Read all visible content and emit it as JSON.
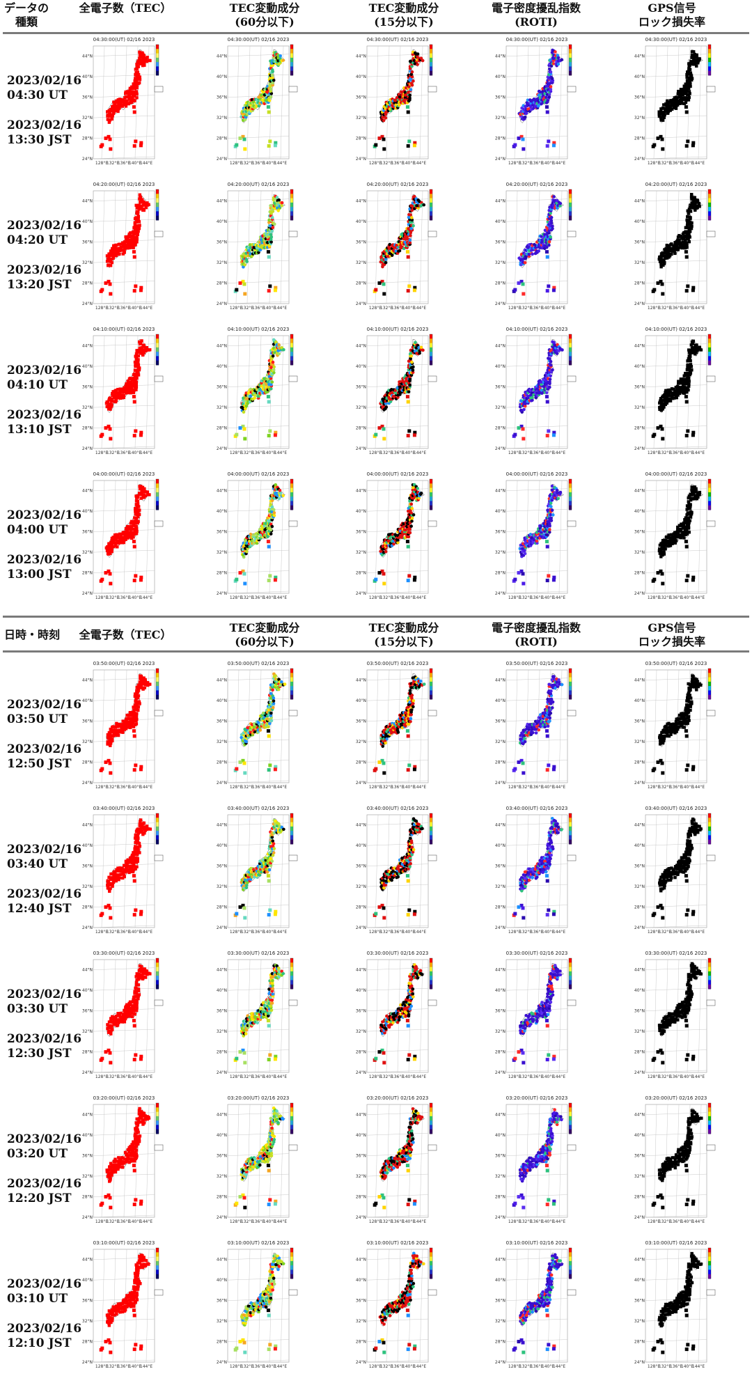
{
  "header_top": {
    "label_col": "データの\n種類",
    "columns": [
      "全電子数（TEC）",
      "TEC変動成分\n(60分以下)",
      "TEC変動成分\n(15分以下)",
      "電子密度擾乱指数\n(ROTI)",
      "GPS信号\nロック損失率"
    ]
  },
  "header_bottom": {
    "label_col": "日時・時刻",
    "columns": [
      "全電子数（TEC）",
      "TEC変動成分\n(60分以下)",
      "TEC変動成分\n(15分以下)",
      "電子密度擾乱指数\n(ROTI)",
      "GPS信号\nロック損失率"
    ]
  },
  "rows": [
    {
      "ut_date": "2023/02/16",
      "ut_time": "04:30 UT",
      "jst_date": "2023/02/16",
      "jst_time": "13:30 JST",
      "map_title": "04:30:00(UT) 02/16 2023"
    },
    {
      "ut_date": "2023/02/16",
      "ut_time": "04:20 UT",
      "jst_date": "2023/02/16",
      "jst_time": "13:20 JST",
      "map_title": "04:20:00(UT) 02/16 2023"
    },
    {
      "ut_date": "2023/02/16",
      "ut_time": "04:10 UT",
      "jst_date": "2023/02/16",
      "jst_time": "13:10 JST",
      "map_title": "04:10:00(UT) 02/16 2023"
    },
    {
      "ut_date": "2023/02/16",
      "ut_time": "04:00 UT",
      "jst_date": "2023/02/16",
      "jst_time": "13:00 JST",
      "map_title": "04:00:00(UT) 02/16 2023"
    },
    {
      "ut_date": "2023/02/16",
      "ut_time": "03:50 UT",
      "jst_date": "2023/02/16",
      "jst_time": "12:50 JST",
      "map_title": "03:50:00(UT) 02/16 2023"
    },
    {
      "ut_date": "2023/02/16",
      "ut_time": "03:40 UT",
      "jst_date": "2023/02/16",
      "jst_time": "12:40 JST",
      "map_title": "03:40:00(UT) 02/16 2023"
    },
    {
      "ut_date": "2023/02/16",
      "ut_time": "03:30 UT",
      "jst_date": "2023/02/16",
      "jst_time": "12:30 JST",
      "map_title": "03:30:00(UT) 02/16 2023"
    },
    {
      "ut_date": "2023/02/16",
      "ut_time": "03:20 UT",
      "jst_date": "2023/02/16",
      "jst_time": "12:20 JST",
      "map_title": "03:20:00(UT) 02/16 2023"
    },
    {
      "ut_date": "2023/02/16",
      "ut_time": "03:10 UT",
      "jst_date": "2023/02/16",
      "jst_time": "12:10 JST",
      "map_title": "03:10:00(UT) 02/16 2023"
    }
  ],
  "chart_data": {
    "type": "heatmap",
    "map_axes": {
      "lat_ticks": [
        "44°N",
        "40°N",
        "36°N",
        "32°N",
        "28°N",
        "24°N"
      ],
      "lon_ticks": [
        "128°E",
        "132°E",
        "136°E",
        "140°E",
        "144°E"
      ],
      "lat_range": [
        24,
        46
      ],
      "lon_range": [
        125,
        147
      ]
    },
    "panels": [
      {
        "name": "全電子数（TEC）",
        "dominant_color": "#ff0000"
      },
      {
        "name": "TEC変動成分(60分以下)",
        "dominant_color": "#7ed321"
      },
      {
        "name": "TEC変動成分(15分以下)",
        "dominant_color": "#e01010"
      },
      {
        "name": "電子密度擾乱指数(ROTI)",
        "dominant_color": "#3a10d0"
      },
      {
        "name": "GPS信号ロック損失率",
        "dominant_color": "#000000"
      }
    ]
  }
}
